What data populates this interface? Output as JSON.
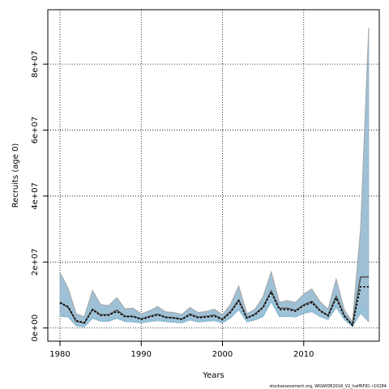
{
  "chart_data": {
    "type": "area",
    "xlabel": "Years",
    "ylabel": "Recruits (age 0)",
    "xlim": [
      1978.5,
      2019.3
    ],
    "ylim": [
      -4000000,
      96500000
    ],
    "xticks": [
      1980,
      1990,
      2000,
      2010
    ],
    "xtick_labels": [
      "1980",
      "1990",
      "2000",
      "2010"
    ],
    "yticks": [
      0,
      20000000,
      40000000,
      60000000,
      80000000
    ],
    "ytick_labels": [
      "0e+00",
      "2e+07",
      "4e+07",
      "6e+07",
      "8e+07"
    ],
    "grid": true,
    "colors": {
      "band": "#9fc1d6",
      "band_edge": "#8aa5b6",
      "band_outer": "#a8a8a8",
      "line": "#555555",
      "dotted_estimate": "#000000",
      "highlight": "#6fc4e8",
      "grid": "#000000"
    },
    "years": [
      1980,
      1981,
      1982,
      1983,
      1984,
      1985,
      1986,
      1987,
      1988,
      1989,
      1990,
      1991,
      1992,
      1993,
      1994,
      1995,
      1996,
      1997,
      1998,
      1999,
      2000,
      2001,
      2002,
      2003,
      2004,
      2005,
      2006,
      2007,
      2008,
      2009,
      2010,
      2011,
      2012,
      2013,
      2014,
      2015,
      2016,
      2017,
      2018
    ],
    "series": [
      {
        "role": "upper",
        "values": [
          16800000,
          12000000,
          4300000,
          3400000,
          11400000,
          7100000,
          6800000,
          9200000,
          5800000,
          6000000,
          4300000,
          5200000,
          6500000,
          4900000,
          4700000,
          4100000,
          6200000,
          4700000,
          5000000,
          5700000,
          4000000,
          7200000,
          12700000,
          4300000,
          5700000,
          9500000,
          17000000,
          7800000,
          8300000,
          7700000,
          10300000,
          11800000,
          8000000,
          5700000,
          14800000,
          5500000,
          1800000,
          30000000,
          91000000
        ]
      },
      {
        "role": "lower",
        "values": [
          3500000,
          3300000,
          600000,
          300000,
          2900000,
          2000000,
          2000000,
          2900000,
          1900000,
          1800000,
          1500000,
          1900000,
          2200000,
          1900000,
          1700000,
          1500000,
          2400000,
          1800000,
          2000000,
          2200000,
          1500000,
          3000000,
          5500000,
          1800000,
          2400000,
          3400000,
          7900000,
          3400000,
          3500000,
          3300000,
          4400000,
          4900000,
          3400000,
          2500000,
          6200000,
          2500000,
          400000,
          4400000,
          1800000
        ]
      },
      {
        "role": "median",
        "values": [
          7800000,
          6200000,
          2000000,
          1500000,
          5700000,
          4000000,
          4000000,
          5400000,
          3600000,
          3500000,
          2800000,
          3500000,
          4200000,
          3300000,
          3100000,
          2700000,
          4200000,
          3300000,
          3500000,
          3900000,
          2700000,
          5000000,
          8500000,
          3100000,
          4200000,
          6400000,
          11200000,
          6000000,
          6000000,
          5300000,
          7000000,
          8100000,
          5400000,
          3800000,
          9600000,
          3800000,
          900000,
          15500000,
          15500000
        ]
      },
      {
        "role": "estimate",
        "values": [
          7600000,
          6500000,
          2200000,
          1600000,
          5500000,
          3800000,
          3900000,
          5000000,
          3400000,
          3500000,
          2600000,
          3300000,
          4000000,
          3200000,
          3000000,
          2600000,
          4000000,
          3100000,
          3300000,
          3600000,
          2500000,
          4800000,
          8200000,
          3000000,
          4000000,
          6200000,
          10900000,
          5600000,
          5600000,
          5100000,
          6800000,
          7700000,
          5200000,
          3700000,
          9100000,
          3600000,
          800000,
          12500000,
          12500000
        ]
      }
    ]
  },
  "credit": "stockassessment.org, WGWIDE2018_V2_halfRFID, r10284"
}
